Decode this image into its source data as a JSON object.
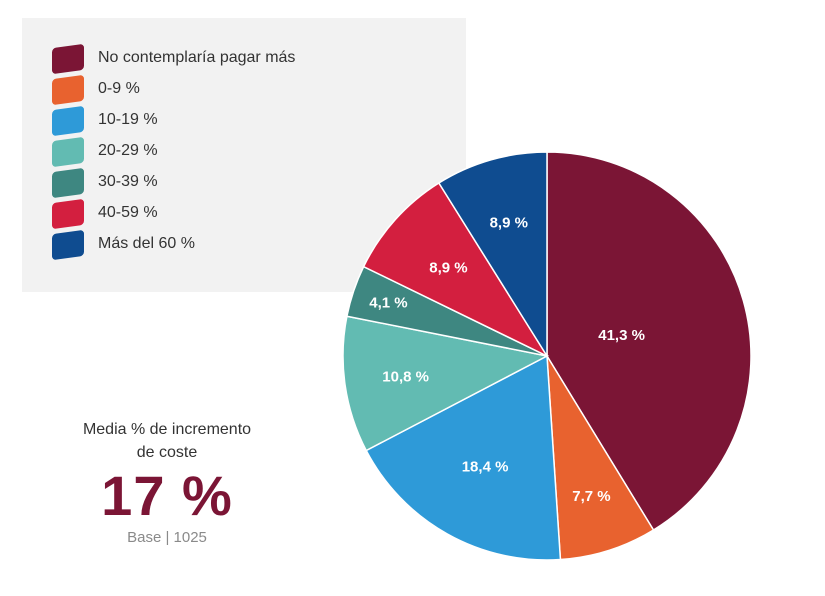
{
  "chart_data": {
    "type": "pie",
    "categories": [
      "No contemplaría pagar más",
      "0-9 %",
      "10-19 %",
      "20-29 %",
      "30-39 %",
      "40-59 %",
      "Más del 60 %"
    ],
    "values": [
      41.3,
      7.7,
      18.4,
      10.8,
      4.1,
      8.9,
      8.9
    ],
    "value_labels": [
      "41,3 %",
      "7,7 %",
      "18,4 %",
      "10,8 %",
      "4,1 %",
      "8,9 %",
      "8,9 %"
    ],
    "colors": [
      "#7b1535",
      "#e8622f",
      "#2e9ad8",
      "#62bbb2",
      "#3e8781",
      "#d31f3f",
      "#0f4c90"
    ],
    "legend_position": "top-left",
    "start": "top, clockwise"
  },
  "summary": {
    "caption_line1": "Media % de incremento",
    "caption_line2": "de coste",
    "value": "17 %",
    "base": "Base | 1025"
  }
}
